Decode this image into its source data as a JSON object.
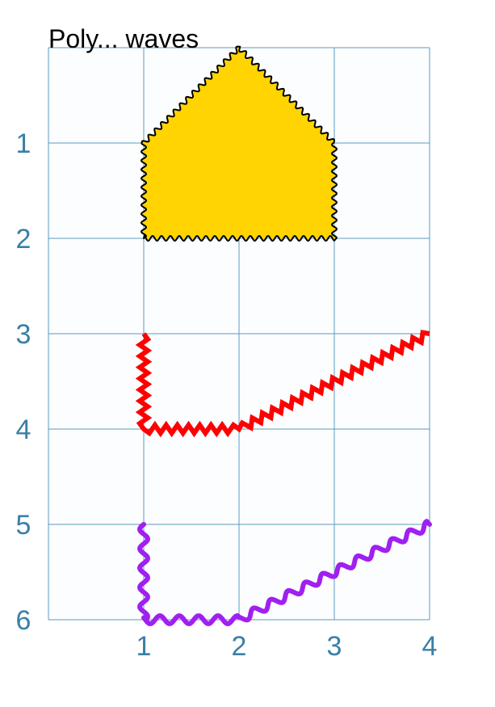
{
  "title": "Poly... waves",
  "colors": {
    "grid": "#5b9bbd",
    "plot_background": "#fcfdfe",
    "tick_text": "#3a7fa6",
    "pentagon_fill": "#ffd400",
    "pentagon_stroke": "#000000",
    "zigzag_line": "#ff0000",
    "wavy_line": "#a020f0"
  },
  "chart_data": {
    "type": "diagram",
    "x_ticks": [
      "1",
      "2",
      "3",
      "4"
    ],
    "y_ticks": [
      "1",
      "2",
      "3",
      "4",
      "5",
      "6"
    ],
    "xlim": [
      0,
      4
    ],
    "ylim": [
      0,
      6
    ],
    "y_direction": "down",
    "grid": true,
    "shapes": [
      {
        "kind": "polygon",
        "style": "wavy-outline",
        "points": [
          [
            1,
            2
          ],
          [
            1,
            1
          ],
          [
            2,
            0
          ],
          [
            3,
            1
          ],
          [
            3,
            2
          ]
        ]
      },
      {
        "kind": "polyline",
        "style": "zigzag",
        "points": [
          [
            1,
            3
          ],
          [
            1,
            4
          ],
          [
            2,
            4
          ],
          [
            4,
            3
          ]
        ]
      },
      {
        "kind": "polyline",
        "style": "wave",
        "points": [
          [
            1,
            5
          ],
          [
            1,
            6
          ],
          [
            2,
            6
          ],
          [
            4,
            5
          ]
        ]
      }
    ]
  }
}
